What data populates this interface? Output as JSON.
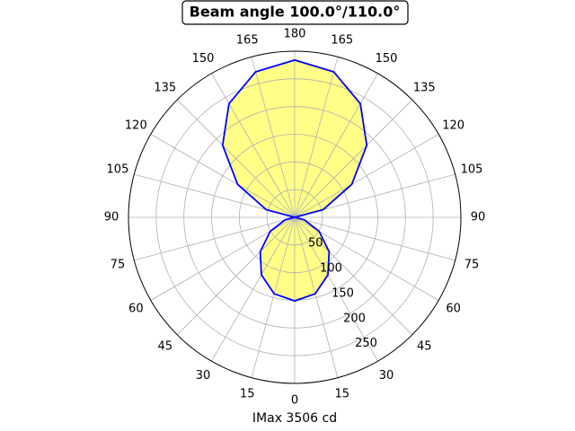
{
  "chart_data": {
    "type": "polar",
    "title": "Beam angle 100.0°/110.0°",
    "x_label": "IMax 3506 cd",
    "x": [
      0,
      15,
      30,
      45,
      60,
      75,
      90,
      105,
      120,
      135,
      150,
      165,
      180,
      195,
      210,
      225,
      240,
      255,
      270,
      285,
      300,
      315,
      330,
      345,
      360
    ],
    "values": [
      151,
      143,
      120,
      88,
      51,
      18,
      0,
      53,
      119,
      184,
      237,
      272,
      284,
      272,
      237,
      184,
      119,
      53,
      0,
      18,
      51,
      88,
      120,
      143,
      151
    ],
    "line_color": "#0000ff",
    "fill_color": "#ffff88",
    "ylim": [
      0,
      300
    ],
    "yticks": [
      50,
      100,
      150,
      200,
      250
    ],
    "xticks": [
      0,
      15,
      30,
      45,
      60,
      75,
      90,
      105,
      120,
      135,
      150,
      165,
      180,
      {
        "value": 195,
        "label": "165"
      },
      {
        "value": 210,
        "label": "150"
      },
      {
        "value": 225,
        "label": "135"
      },
      {
        "value": 240,
        "label": "120"
      },
      {
        "value": 255,
        "label": "105"
      },
      {
        "value": 270,
        "label": "90"
      },
      {
        "value": 285,
        "label": "75"
      },
      {
        "value": 300,
        "label": "60"
      },
      {
        "value": 315,
        "label": "45"
      },
      {
        "value": 330,
        "label": "30"
      },
      {
        "value": 345,
        "label": "15"
      }
    ],
    "grid": true
  }
}
